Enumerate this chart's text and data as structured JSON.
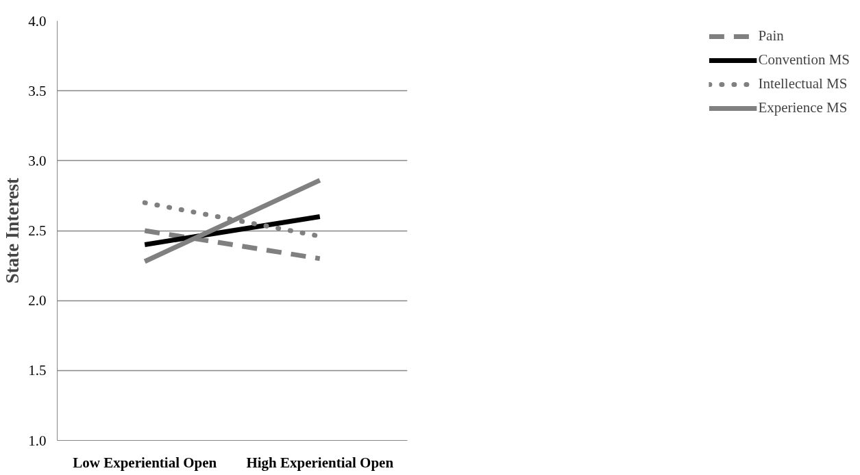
{
  "chart_data": {
    "type": "line",
    "ylabel": "State Interest",
    "categories": [
      "Low Experiential Open",
      "High Experiential Open"
    ],
    "series": [
      {
        "name": "Pain",
        "color": "#808080",
        "line_style": "dashed",
        "values": [
          2.5,
          2.3
        ]
      },
      {
        "name": "Convention MS",
        "color": "#000000",
        "line_style": "solid",
        "values": [
          2.4,
          2.6
        ]
      },
      {
        "name": "Intellectual MS",
        "color": "#808080",
        "line_style": "dotted",
        "values": [
          2.7,
          2.46
        ]
      },
      {
        "name": "Experience MS",
        "color": "#808080",
        "line_style": "solid",
        "values": [
          2.28,
          2.86
        ]
      }
    ],
    "ylim": [
      1.0,
      4.0
    ],
    "yticks": [
      {
        "value": 1.0,
        "label": "1.0"
      },
      {
        "value": 1.5,
        "label": "1.5"
      },
      {
        "value": 2.0,
        "label": "2.0"
      },
      {
        "value": 2.5,
        "label": "2.5"
      },
      {
        "value": 3.0,
        "label": "3.0"
      },
      {
        "value": 3.5,
        "label": "3.5"
      },
      {
        "value": 4.0,
        "label": "4.0"
      }
    ],
    "grid": "y",
    "legend": "right",
    "marker": "none"
  }
}
